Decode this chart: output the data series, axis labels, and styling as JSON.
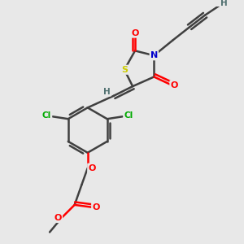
{
  "background_color": "#e8e8e8",
  "atom_colors": {
    "C": "#404040",
    "H": "#507070",
    "O": "#ff0000",
    "N": "#0000cc",
    "S": "#cccc00",
    "Cl": "#00aa00"
  },
  "bond_color": "#404040",
  "bond_width": 1.8,
  "figsize": [
    3.0,
    3.0
  ],
  "dpi": 100
}
